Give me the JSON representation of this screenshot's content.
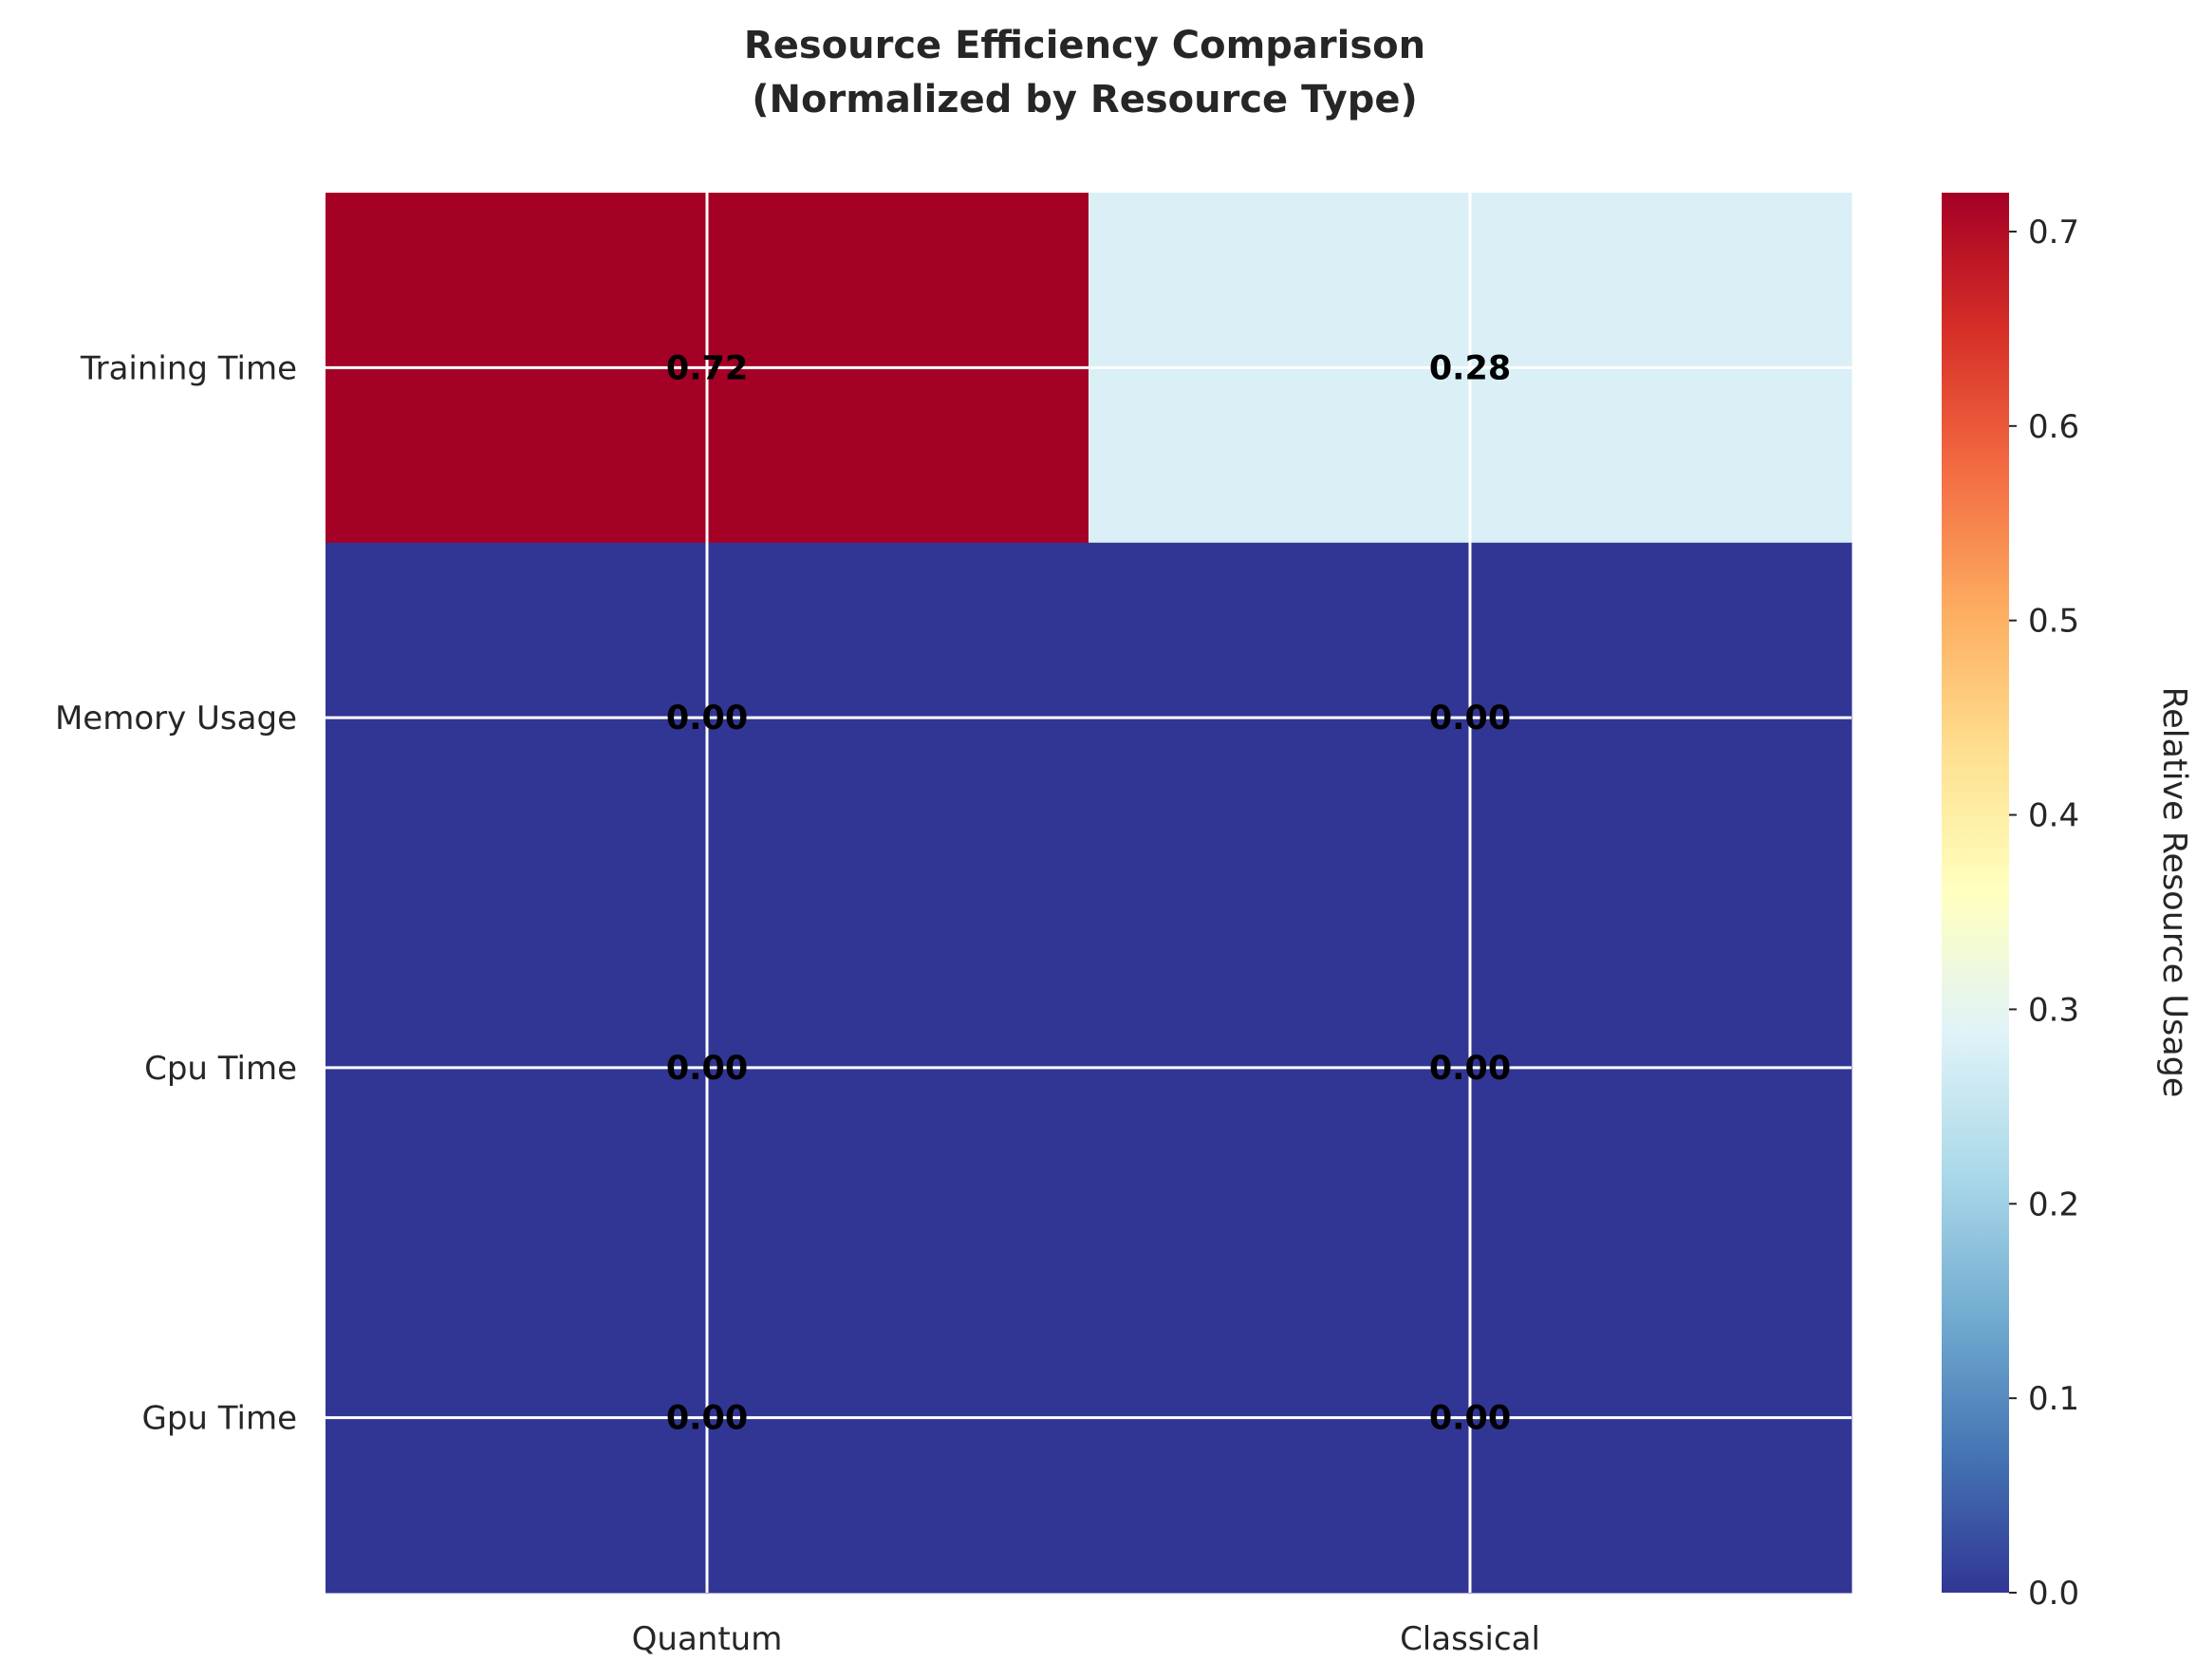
{
  "chart_data": {
    "type": "heatmap",
    "title_lines": [
      "Resource Efficiency Comparison",
      "(Normalized by Resource Type)"
    ],
    "rows": [
      "Training Time",
      "Memory Usage",
      "Cpu Time",
      "Gpu Time"
    ],
    "columns": [
      "Quantum",
      "Classical"
    ],
    "values": [
      [
        0.72,
        0.28
      ],
      [
        0.0,
        0.0
      ],
      [
        0.0,
        0.0
      ],
      [
        0.0,
        0.0
      ]
    ],
    "value_labels": [
      [
        "0.72",
        "0.28"
      ],
      [
        "0.00",
        "0.00"
      ],
      [
        "0.00",
        "0.00"
      ],
      [
        "0.00",
        "0.00"
      ]
    ],
    "colormap": "RdYlBu_r",
    "colorbar": {
      "label": "Relative Resource Usage",
      "range": [
        0.0,
        0.72
      ],
      "ticks": [
        0.0,
        0.1,
        0.2,
        0.3,
        0.4,
        0.5,
        0.6,
        0.7
      ],
      "tick_labels": [
        "0.0",
        "0.1",
        "0.2",
        "0.3",
        "0.4",
        "0.5",
        "0.6",
        "0.7"
      ]
    },
    "grid": true,
    "colors": {
      "grid": "#ffffff",
      "annotation": "#000000",
      "text": "#262626",
      "colormap_stops": [
        "#313695",
        "#4575b4",
        "#74add1",
        "#abd9e9",
        "#e0f3f8",
        "#ffffbf",
        "#fee090",
        "#fdae61",
        "#f46d43",
        "#d73027",
        "#a50026"
      ]
    }
  }
}
